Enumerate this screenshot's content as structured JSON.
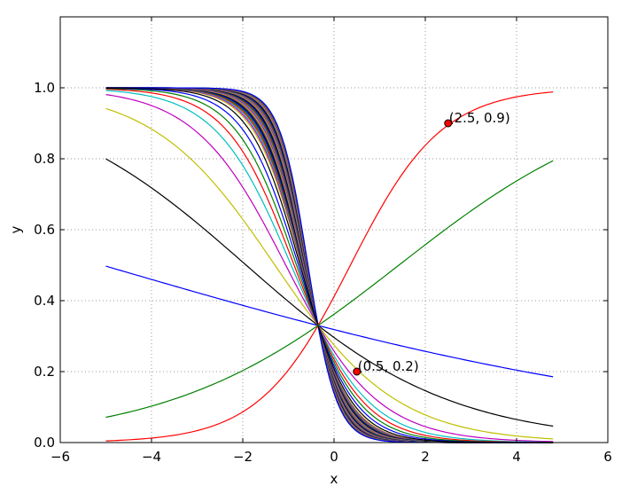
{
  "chart_data": {
    "type": "line",
    "xlabel": "x",
    "ylabel": "y",
    "xlim": [
      -6,
      6
    ],
    "ylim": [
      0.0,
      1.2
    ],
    "x_ticks": [
      "−6",
      "−4",
      "−2",
      "0",
      "2",
      "4",
      "6"
    ],
    "y_ticks": [
      "0.0",
      "0.2",
      "0.4",
      "0.6",
      "0.8",
      "1.0"
    ],
    "grid": true,
    "grid_style": "dotted",
    "x_range": [
      -5.0,
      4.8
    ],
    "curve_family": {
      "formula": "sigmoid(w*x + b), curves pass through (-0.35, 0.33)",
      "increasing_series": [
        {
          "w": 1.0,
          "b": -0.358,
          "color": "#ff0000"
        },
        {
          "w": 0.4,
          "b": -0.568,
          "color": "#008000"
        }
      ],
      "decreasing_series": [
        {
          "w": -0.15,
          "b": -0.761,
          "color": "#0000ff"
        },
        {
          "w": -0.45,
          "b": -0.866,
          "color": "#000000"
        },
        {
          "w": -0.75,
          "b": -0.971,
          "color": "#bfbf00"
        },
        {
          "w": -1.0,
          "b": -1.058,
          "color": "#bf00bf"
        },
        {
          "w": -1.2,
          "b": -1.128,
          "color": "#00bfbf"
        },
        {
          "w": -1.35,
          "b": -1.181,
          "color": "#ff0000"
        },
        {
          "w": -1.5,
          "b": -1.233,
          "color": "#008000"
        },
        {
          "w": -1.65,
          "b": -1.286,
          "color": "#0000ff"
        },
        {
          "w": -1.8,
          "b": -1.338,
          "color": "#000000"
        }
      ],
      "dense_band": {
        "w_start": -1.9,
        "w_end": -3.2,
        "count": 30,
        "colors": [
          "#bfbf00",
          "#bf00bf",
          "#00bfbf",
          "#ff0000",
          "#008000",
          "#0000ff",
          "#000000",
          "#4b3f6b"
        ]
      }
    },
    "annotations": [
      {
        "x": 2.5,
        "y": 0.9,
        "text": "(2.5, 0.9)",
        "color": "#ff0000"
      },
      {
        "x": 0.5,
        "y": 0.2,
        "text": "(0.5, 0.2)",
        "color": "#ff0000"
      }
    ]
  }
}
